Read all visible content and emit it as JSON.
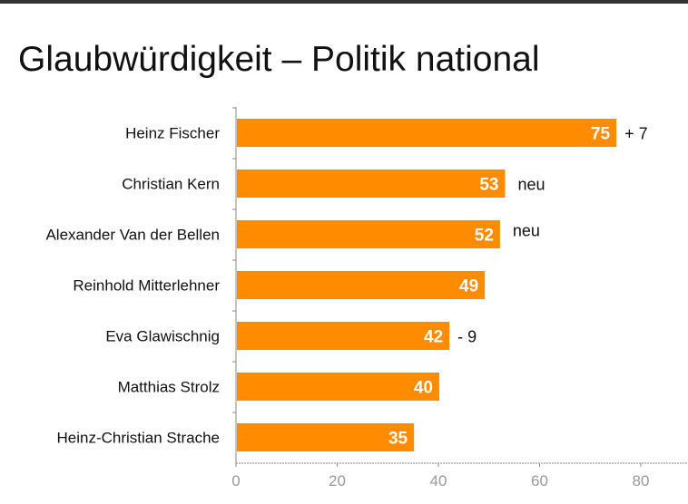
{
  "chart_data": {
    "type": "bar",
    "orientation": "horizontal",
    "title": "Glaubwürdigkeit – Politik national",
    "categories": [
      "Heinz Fischer",
      "Christian Kern",
      "Alexander Van der Bellen",
      "Reinhold Mitterlehner",
      "Eva Glawischnig",
      "Matthias Strolz",
      "Heinz-Christian Strache"
    ],
    "values": [
      75,
      53,
      52,
      49,
      42,
      40,
      35
    ],
    "changes": [
      "+ 7",
      "neu",
      "neu",
      "",
      "- 9",
      "",
      ""
    ],
    "xlim": [
      0,
      85
    ],
    "xticks": [
      0,
      20,
      40,
      60,
      80
    ],
    "bar_color": "#FF8C00",
    "grid": false
  }
}
